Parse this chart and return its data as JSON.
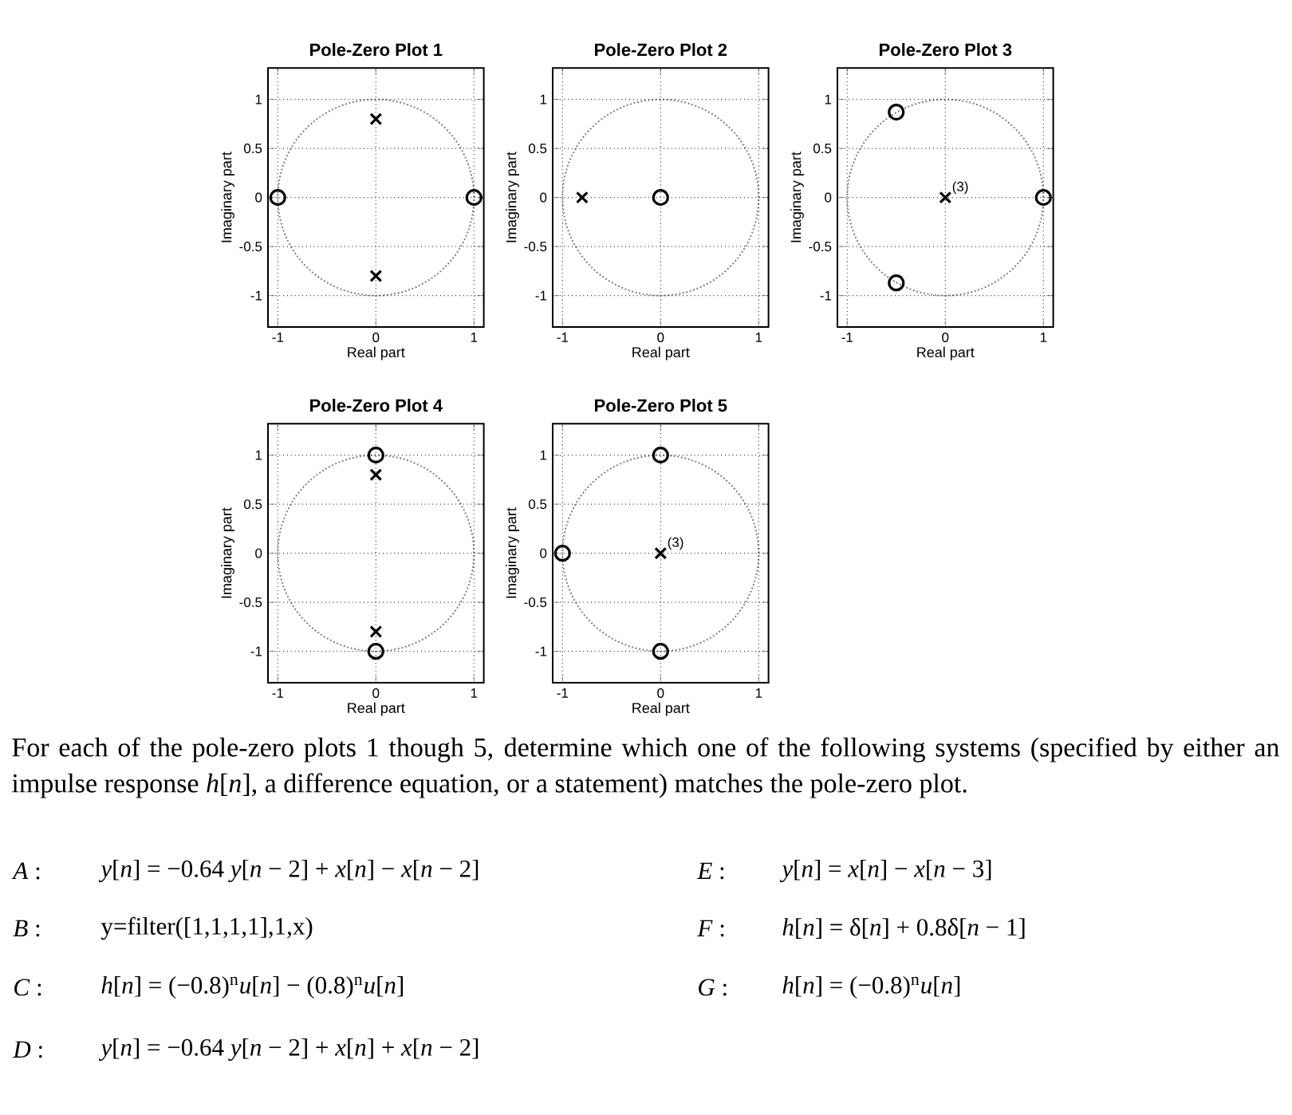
{
  "chart_data": [
    {
      "type": "scatter",
      "title": "Pole-Zero Plot 1",
      "xlabel": "Real part",
      "ylabel": "Imaginary part",
      "xlim": [
        -1.1,
        1.1
      ],
      "ylim": [
        -1.32,
        1.32
      ],
      "xticks": [
        -1,
        0,
        1
      ],
      "yticks": [
        -1,
        -0.5,
        0,
        0.5,
        1
      ],
      "grid": true,
      "series": [
        {
          "type": "scatter",
          "marker": "cross",
          "color": "#000000",
          "x": [
            0,
            0
          ],
          "values": [
            0.8,
            -0.8
          ]
        },
        {
          "type": "scatter",
          "marker": "circle",
          "color": "#000000",
          "x": [
            -1,
            1
          ],
          "values": [
            0,
            0
          ]
        }
      ]
    },
    {
      "type": "scatter",
      "title": "Pole-Zero Plot 2",
      "xlabel": "Real part",
      "ylabel": "Imaginary part",
      "xlim": [
        -1.1,
        1.1
      ],
      "ylim": [
        -1.32,
        1.32
      ],
      "xticks": [
        -1,
        0,
        1
      ],
      "yticks": [
        -1,
        -0.5,
        0,
        0.5,
        1
      ],
      "grid": true,
      "series": [
        {
          "type": "scatter",
          "marker": "cross",
          "color": "#000000",
          "x": [
            -0.8
          ],
          "values": [
            0
          ]
        },
        {
          "type": "scatter",
          "marker": "circle",
          "color": "#000000",
          "x": [
            0
          ],
          "values": [
            0
          ]
        }
      ]
    },
    {
      "type": "scatter",
      "title": "Pole-Zero Plot 3",
      "xlabel": "Real part",
      "ylabel": "Imaginary part",
      "xlim": [
        -1.1,
        1.1
      ],
      "ylim": [
        -1.32,
        1.32
      ],
      "xticks": [
        -1,
        0,
        1
      ],
      "yticks": [
        -1,
        -0.5,
        0,
        0.5,
        1
      ],
      "grid": true,
      "annotations": [
        {
          "text": "(3)",
          "x": 0,
          "y": 0
        }
      ],
      "series": [
        {
          "type": "scatter",
          "marker": "cross",
          "color": "#000000",
          "x": [
            0
          ],
          "values": [
            0
          ]
        },
        {
          "type": "scatter",
          "marker": "circle",
          "color": "#000000",
          "x": [
            -0.5,
            -0.5,
            1
          ],
          "values": [
            0.87,
            -0.87,
            0
          ]
        }
      ]
    },
    {
      "type": "scatter",
      "title": "Pole-Zero Plot 4",
      "xlabel": "Real part",
      "ylabel": "Imaginary part",
      "xlim": [
        -1.1,
        1.1
      ],
      "ylim": [
        -1.32,
        1.32
      ],
      "xticks": [
        -1,
        0,
        1
      ],
      "yticks": [
        -1,
        -0.5,
        0,
        0.5,
        1
      ],
      "grid": true,
      "series": [
        {
          "type": "scatter",
          "marker": "cross",
          "color": "#000000",
          "x": [
            0,
            0
          ],
          "values": [
            0.8,
            -0.8
          ]
        },
        {
          "type": "scatter",
          "marker": "circle",
          "color": "#000000",
          "x": [
            0,
            0
          ],
          "values": [
            1,
            -1
          ]
        }
      ]
    },
    {
      "type": "scatter",
      "title": "Pole-Zero Plot 5",
      "xlabel": "Real part",
      "ylabel": "Imaginary part",
      "xlim": [
        -1.1,
        1.1
      ],
      "ylim": [
        -1.32,
        1.32
      ],
      "xticks": [
        -1,
        0,
        1
      ],
      "yticks": [
        -1,
        -0.5,
        0,
        0.5,
        1
      ],
      "grid": true,
      "annotations": [
        {
          "text": "(3)",
          "x": 0,
          "y": 0
        }
      ],
      "series": [
        {
          "type": "scatter",
          "marker": "cross",
          "color": "#000000",
          "x": [
            0
          ],
          "values": [
            0
          ]
        },
        {
          "type": "scatter",
          "marker": "circle",
          "color": "#000000",
          "x": [
            0,
            0,
            -1
          ],
          "values": [
            1,
            -1,
            0
          ]
        }
      ]
    },
    {
      "type": "other",
      "annotations": [
        "For each of the pole-zero plots 1 though 5, determine which one of the following systems (specified by either an impulse response *h*[*n*], a difference equation, or a statement) matches the pole-zero plot.",
        "*A* :",
        "*y*[*n*] = −0.64 *y*[*n* − 2] + *x*[*n*] − *x*[*n* − 2]",
        "*B* :",
        "y=filter([1,1,1,1],1,x)",
        "*C* :",
        "*h*[*n*] = (−0.8)$^{n}$*u*[*n*] − (0.8)$^{n}$*u*[*n*]",
        "*D* :",
        "*y*[*n*] = −0.64 *y*[*n* − 2] + *x*[*n*] + *x*[*n* − 2]",
        "*E* :",
        "*y*[*n*] = *x*[*n*] − *x*[*n* − 3]",
        "*F* :",
        "*h*[*n*] = δ[*n*] + 0.8δ[*n* − 1]",
        "*G* :",
        "*h*[*n*] = (−0.8)$^{n}$*u*[*n*]"
      ]
    }
  ]
}
